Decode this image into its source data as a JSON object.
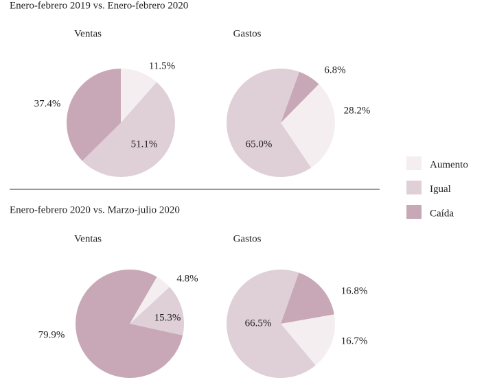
{
  "sections": [
    {
      "title": "Enero-febrero 2019 vs. Enero-febrero 2020"
    },
    {
      "title": "Enero-febrero 2020 vs. Marzo-julio 2020"
    }
  ],
  "chart_data": [
    {
      "type": "pie",
      "title": "Ventas",
      "categories": [
        "Aumento",
        "Igual",
        "Caída"
      ],
      "values": [
        11.5,
        51.1,
        37.4
      ],
      "value_labels": [
        "11.5%",
        "51.1%",
        "37.4%"
      ],
      "colors": [
        "#f4eef0",
        "#dfcfd6",
        "#c8a8b6"
      ],
      "startangle": 0
    },
    {
      "type": "pie",
      "title": "Gastos",
      "categories": [
        "Aumento",
        "Igual",
        "Caída"
      ],
      "values": [
        28.2,
        65.0,
        6.8
      ],
      "value_labels": [
        "28.2%",
        "65.0%",
        "6.8%"
      ],
      "colors": [
        "#f4eef0",
        "#dfcfd6",
        "#c8a8b6"
      ],
      "startangle": 44.5
    },
    {
      "type": "pie",
      "title": "Ventas",
      "categories": [
        "Aumento",
        "Igual",
        "Caída"
      ],
      "values": [
        4.8,
        15.3,
        79.9
      ],
      "value_labels": [
        "4.8%",
        "15.3%",
        "79.9%"
      ],
      "colors": [
        "#f4eef0",
        "#dfcfd6",
        "#c8a8b6"
      ],
      "startangle": 30
    },
    {
      "type": "pie",
      "title": "Gastos",
      "categories": [
        "Aumento",
        "Igual",
        "Caída"
      ],
      "values": [
        16.7,
        66.5,
        16.8
      ],
      "value_labels": [
        "16.7%",
        "66.5%",
        "16.8%"
      ],
      "colors": [
        "#f4eef0",
        "#dfcfd6",
        "#c8a8b6"
      ],
      "startangle": 80
    }
  ]
}
